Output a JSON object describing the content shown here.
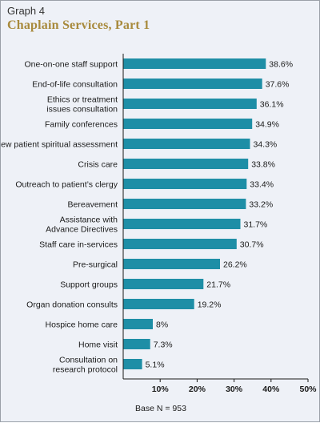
{
  "header": {
    "graph_number": "Graph 4",
    "title": "Chaplain Services, Part 1"
  },
  "footnote": "Base N = 953",
  "colors": {
    "bar": "#1e8ea6",
    "title": "#a88a3c",
    "background": "#eef1f7"
  },
  "chart_data": {
    "type": "bar",
    "orientation": "horizontal",
    "title": "Chaplain Services, Part 1",
    "xlim": [
      0,
      50
    ],
    "ticks": [
      10,
      20,
      30,
      40,
      50
    ],
    "tick_labels": [
      "10%",
      "20%",
      "30%",
      "40%",
      "50%"
    ],
    "categories": [
      [
        "One-on-one staff support"
      ],
      [
        "End-of-life consultation"
      ],
      [
        "Ethics or treatment",
        "issues consultation"
      ],
      [
        "Family conferences"
      ],
      [
        "New patient spiritual assessment"
      ],
      [
        "Crisis care"
      ],
      [
        "Outreach to patient’s clergy"
      ],
      [
        "Bereavement"
      ],
      [
        "Assistance with",
        "Advance Directives"
      ],
      [
        "Staff care in-services"
      ],
      [
        "Pre-surgical"
      ],
      [
        "Support groups"
      ],
      [
        "Organ donation consults"
      ],
      [
        "Hospice home care"
      ],
      [
        "Home visit"
      ],
      [
        "Consultation on",
        "research protocol"
      ]
    ],
    "values": [
      38.6,
      37.6,
      36.1,
      34.9,
      34.3,
      33.8,
      33.4,
      33.2,
      31.7,
      30.7,
      26.2,
      21.7,
      19.2,
      8,
      7.3,
      5.1
    ],
    "value_labels": [
      "38.6%",
      "37.6%",
      "36.1%",
      "34.9%",
      "34.3%",
      "33.8%",
      "33.4%",
      "33.2%",
      "31.7%",
      "30.7%",
      "26.2%",
      "21.7%",
      "19.2%",
      "8%",
      "7.3%",
      "5.1%"
    ],
    "grid": false
  }
}
